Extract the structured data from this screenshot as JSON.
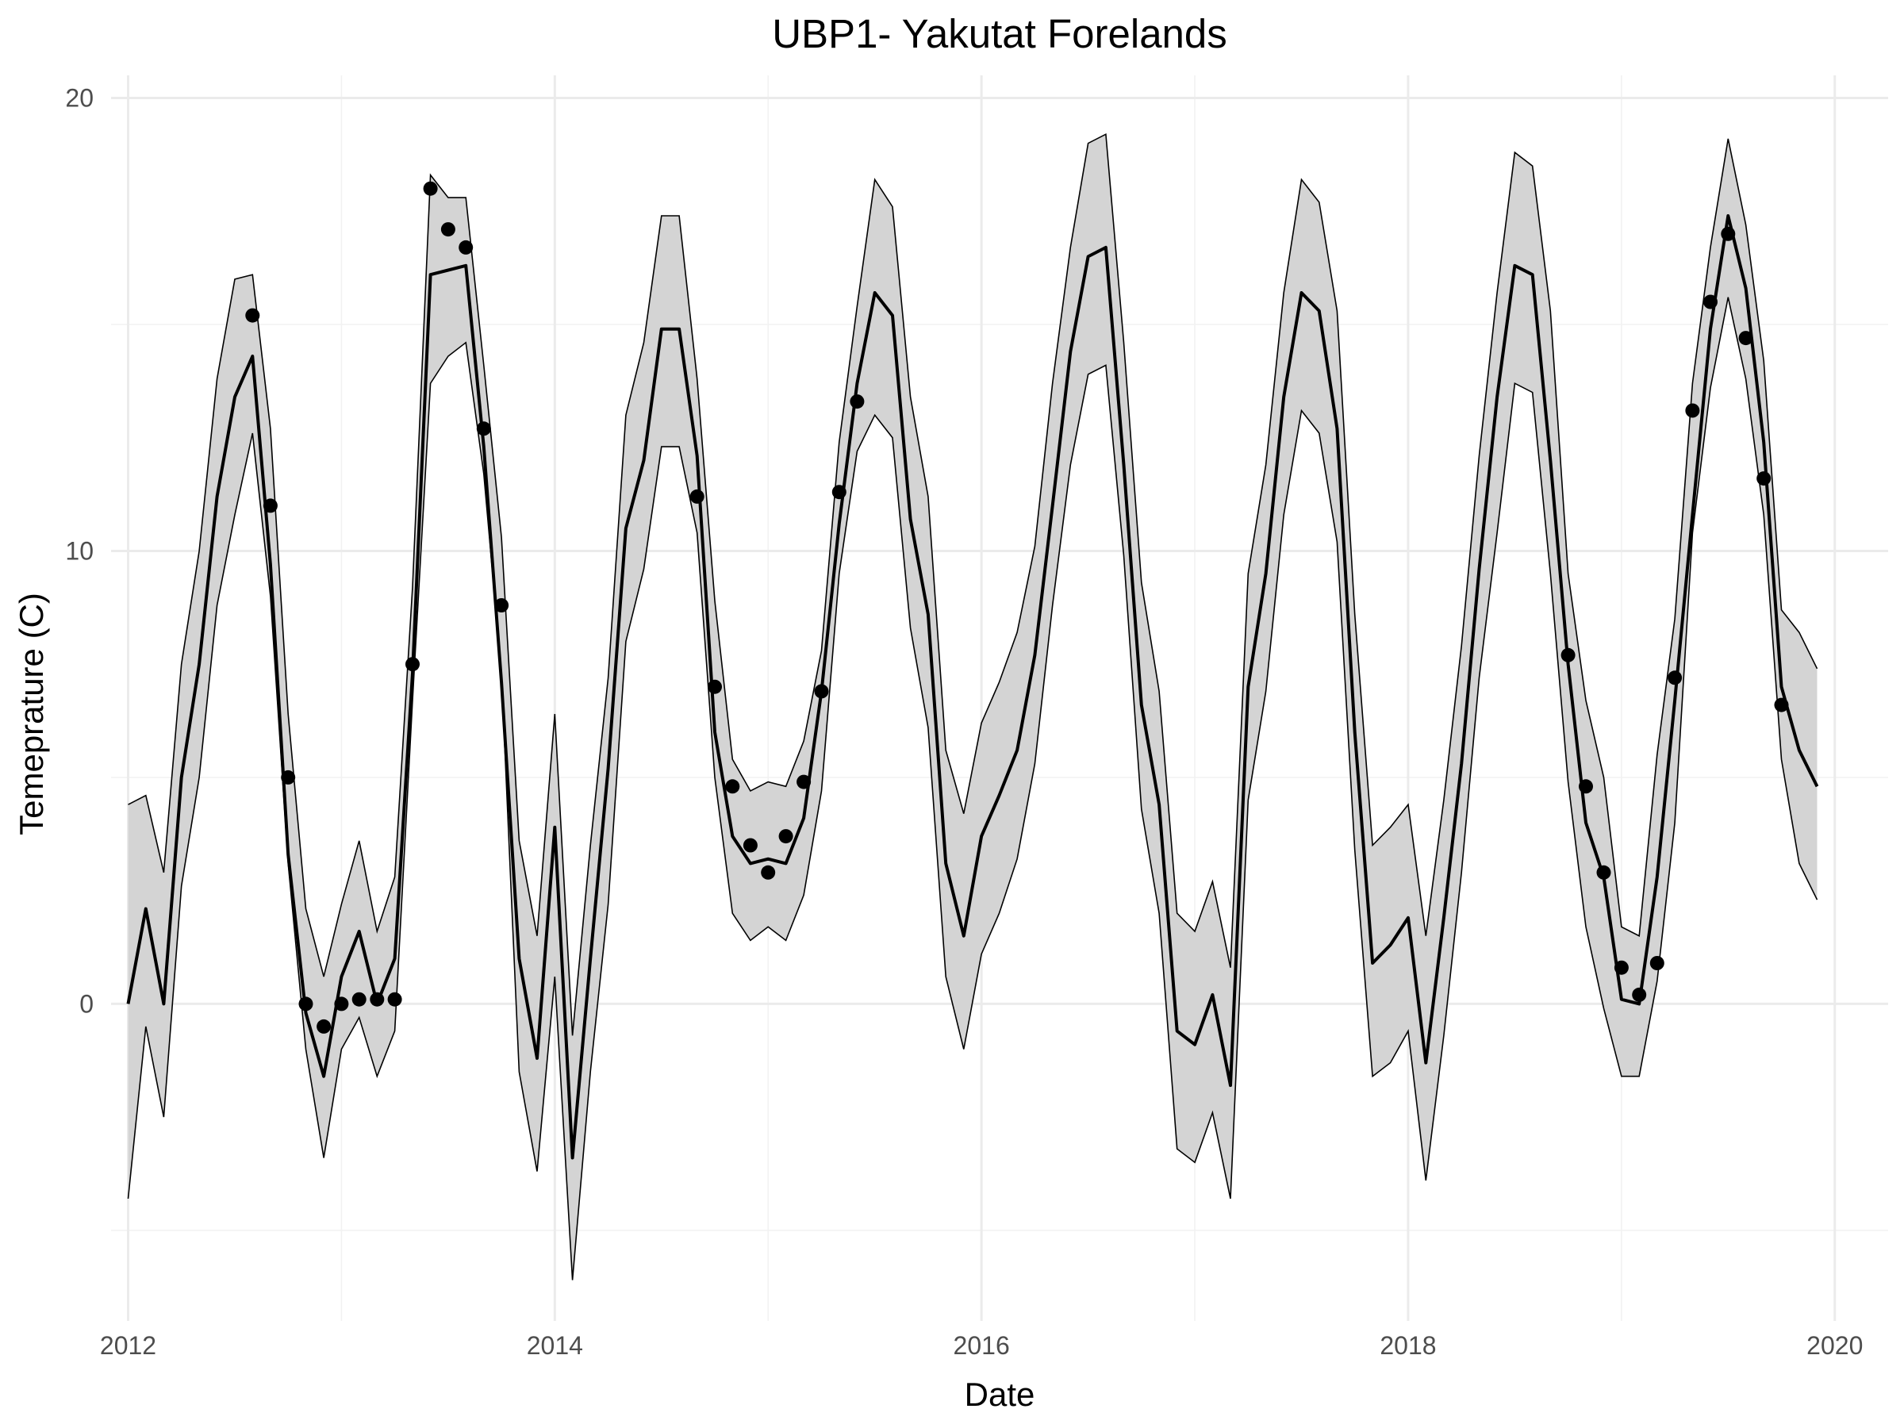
{
  "chart_data": {
    "type": "line",
    "title": "UBP1- Yakutat Forelands",
    "xlabel": "Date",
    "ylabel": "Temeprature (C)",
    "xlim": [
      2011.92,
      2020.25
    ],
    "ylim": [
      -7,
      20.5
    ],
    "x_ticks": [
      2012,
      2014,
      2016,
      2018,
      2020
    ],
    "x_tick_labels": [
      "2012",
      "2014",
      "2016",
      "2018",
      "2020"
    ],
    "y_ticks": [
      0,
      10,
      20
    ],
    "y_tick_labels": [
      "0",
      "10",
      "20"
    ],
    "grid": true,
    "legend": "none",
    "series": [
      {
        "role": "fitted",
        "x": [
          2012.0,
          2012.083,
          2012.167,
          2012.25,
          2012.333,
          2012.417,
          2012.5,
          2012.583,
          2012.667,
          2012.75,
          2012.833,
          2012.917,
          2013.0,
          2013.083,
          2013.167,
          2013.25,
          2013.333,
          2013.417,
          2013.5,
          2013.583,
          2013.667,
          2013.75,
          2013.833,
          2013.917,
          2014.0,
          2014.083,
          2014.167,
          2014.25,
          2014.333,
          2014.417,
          2014.5,
          2014.583,
          2014.667,
          2014.75,
          2014.833,
          2014.917,
          2015.0,
          2015.083,
          2015.167,
          2015.25,
          2015.333,
          2015.417,
          2015.5,
          2015.583,
          2015.667,
          2015.75,
          2015.833,
          2015.917,
          2016.0,
          2016.083,
          2016.167,
          2016.25,
          2016.333,
          2016.417,
          2016.5,
          2016.583,
          2016.667,
          2016.75,
          2016.833,
          2016.917,
          2017.0,
          2017.083,
          2017.167,
          2017.25,
          2017.333,
          2017.417,
          2017.5,
          2017.583,
          2017.667,
          2017.75,
          2017.833,
          2017.917,
          2018.0,
          2018.083,
          2018.167,
          2018.25,
          2018.333,
          2018.417,
          2018.5,
          2018.583,
          2018.667,
          2018.75,
          2018.833,
          2018.917,
          2019.0,
          2019.083,
          2019.167,
          2019.25,
          2019.333,
          2019.417,
          2019.5,
          2019.583,
          2019.667,
          2019.75,
          2019.833,
          2019.917
        ],
        "y": [
          0.0,
          2.1,
          0.0,
          5.0,
          7.5,
          11.2,
          13.4,
          14.3,
          9.7,
          3.3,
          -0.2,
          -1.6,
          0.6,
          1.6,
          0.0,
          1.0,
          7.3,
          16.1,
          16.2,
          16.3,
          12.3,
          7.1,
          1.0,
          -1.2,
          3.9,
          -3.4,
          1.0,
          5.2,
          10.5,
          12.0,
          14.9,
          14.9,
          12.1,
          6.0,
          3.7,
          3.1,
          3.2,
          3.1,
          4.1,
          6.9,
          10.6,
          13.7,
          15.7,
          15.2,
          10.7,
          8.6,
          3.1,
          1.5,
          3.7,
          4.6,
          5.6,
          7.7,
          11.0,
          14.4,
          16.5,
          16.7,
          11.9,
          6.6,
          4.4,
          -0.6,
          -0.9,
          0.2,
          -1.8,
          7.0,
          9.5,
          13.4,
          15.7,
          15.3,
          12.7,
          6.0,
          0.9,
          1.3,
          1.9,
          -1.3,
          1.9,
          5.3,
          9.6,
          13.4,
          16.3,
          16.1,
          12.0,
          7.5,
          4.0,
          2.8,
          0.1,
          0.0,
          2.8,
          6.7,
          10.8,
          14.9,
          17.4,
          15.8,
          12.4,
          7.0,
          5.6,
          4.8
        ]
      },
      {
        "role": "upper_bound",
        "x": [
          2012.0,
          2012.083,
          2012.167,
          2012.25,
          2012.333,
          2012.417,
          2012.5,
          2012.583,
          2012.667,
          2012.75,
          2012.833,
          2012.917,
          2013.0,
          2013.083,
          2013.167,
          2013.25,
          2013.333,
          2013.417,
          2013.5,
          2013.583,
          2013.667,
          2013.75,
          2013.833,
          2013.917,
          2014.0,
          2014.083,
          2014.167,
          2014.25,
          2014.333,
          2014.417,
          2014.5,
          2014.583,
          2014.667,
          2014.75,
          2014.833,
          2014.917,
          2015.0,
          2015.083,
          2015.167,
          2015.25,
          2015.333,
          2015.417,
          2015.5,
          2015.583,
          2015.667,
          2015.75,
          2015.833,
          2015.917,
          2016.0,
          2016.083,
          2016.167,
          2016.25,
          2016.333,
          2016.417,
          2016.5,
          2016.583,
          2016.667,
          2016.75,
          2016.833,
          2016.917,
          2017.0,
          2017.083,
          2017.167,
          2017.25,
          2017.333,
          2017.417,
          2017.5,
          2017.583,
          2017.667,
          2017.75,
          2017.833,
          2017.917,
          2018.0,
          2018.083,
          2018.167,
          2018.25,
          2018.333,
          2018.417,
          2018.5,
          2018.583,
          2018.667,
          2018.75,
          2018.833,
          2018.917,
          2019.0,
          2019.083,
          2019.167,
          2019.25,
          2019.333,
          2019.417,
          2019.5,
          2019.583,
          2019.667,
          2019.75,
          2019.833,
          2019.917
        ],
        "y": [
          4.4,
          4.6,
          2.9,
          7.5,
          10.0,
          13.8,
          16.0,
          16.1,
          12.7,
          6.4,
          2.1,
          0.6,
          2.2,
          3.6,
          1.6,
          2.8,
          9.2,
          18.3,
          17.8,
          17.8,
          14.1,
          10.3,
          3.6,
          1.5,
          6.4,
          -0.7,
          3.5,
          7.2,
          13.0,
          14.6,
          17.4,
          17.4,
          13.8,
          8.9,
          5.4,
          4.7,
          4.9,
          4.8,
          5.8,
          7.8,
          12.4,
          15.4,
          18.2,
          17.6,
          13.4,
          11.2,
          5.6,
          4.2,
          6.2,
          7.1,
          8.2,
          10.1,
          13.7,
          16.7,
          19.0,
          19.2,
          14.6,
          9.3,
          6.9,
          2.0,
          1.6,
          2.7,
          0.8,
          9.5,
          11.9,
          15.7,
          18.2,
          17.7,
          15.3,
          8.6,
          3.5,
          3.9,
          4.4,
          1.5,
          4.5,
          7.9,
          12.1,
          15.7,
          18.8,
          18.5,
          15.3,
          9.5,
          6.7,
          5.0,
          1.7,
          1.5,
          5.5,
          8.5,
          13.7,
          16.7,
          19.1,
          17.2,
          14.2,
          8.7,
          8.2,
          7.4
        ]
      },
      {
        "role": "lower_bound",
        "x": [
          2012.0,
          2012.083,
          2012.167,
          2012.25,
          2012.333,
          2012.417,
          2012.5,
          2012.583,
          2012.667,
          2012.75,
          2012.833,
          2012.917,
          2013.0,
          2013.083,
          2013.167,
          2013.25,
          2013.333,
          2013.417,
          2013.5,
          2013.583,
          2013.667,
          2013.75,
          2013.833,
          2013.917,
          2014.0,
          2014.083,
          2014.167,
          2014.25,
          2014.333,
          2014.417,
          2014.5,
          2014.583,
          2014.667,
          2014.75,
          2014.833,
          2014.917,
          2015.0,
          2015.083,
          2015.167,
          2015.25,
          2015.333,
          2015.417,
          2015.5,
          2015.583,
          2015.667,
          2015.75,
          2015.833,
          2015.917,
          2016.0,
          2016.083,
          2016.167,
          2016.25,
          2016.333,
          2016.417,
          2016.5,
          2016.583,
          2016.667,
          2016.75,
          2016.833,
          2016.917,
          2017.0,
          2017.083,
          2017.167,
          2017.25,
          2017.333,
          2017.417,
          2017.5,
          2017.583,
          2017.667,
          2017.75,
          2017.833,
          2017.917,
          2018.0,
          2018.083,
          2018.167,
          2018.25,
          2018.333,
          2018.417,
          2018.5,
          2018.583,
          2018.667,
          2018.75,
          2018.833,
          2018.917,
          2019.0,
          2019.083,
          2019.167,
          2019.25,
          2019.333,
          2019.417,
          2019.5,
          2019.583,
          2019.667,
          2019.75,
          2019.833,
          2019.917
        ],
        "y": [
          -4.3,
          -0.5,
          -2.5,
          2.6,
          5.0,
          8.8,
          10.8,
          12.6,
          9.0,
          3.1,
          -1.0,
          -3.4,
          -1.0,
          -0.3,
          -1.6,
          -0.6,
          6.7,
          13.7,
          14.3,
          14.6,
          11.7,
          7.3,
          -1.5,
          -3.7,
          0.6,
          -6.1,
          -1.5,
          2.2,
          8.0,
          9.6,
          12.3,
          12.3,
          10.4,
          5.0,
          2.0,
          1.4,
          1.7,
          1.4,
          2.4,
          4.7,
          9.5,
          12.2,
          13.0,
          12.5,
          8.3,
          6.1,
          0.6,
          -1.0,
          1.1,
          2.0,
          3.2,
          5.3,
          8.8,
          11.9,
          13.9,
          14.1,
          9.9,
          4.3,
          2.0,
          -3.2,
          -3.5,
          -2.4,
          -4.3,
          4.5,
          6.9,
          10.8,
          13.1,
          12.6,
          10.2,
          3.4,
          -1.6,
          -1.3,
          -0.6,
          -3.9,
          -0.7,
          2.9,
          7.2,
          10.4,
          13.7,
          13.5,
          9.5,
          4.9,
          1.7,
          -0.1,
          -1.6,
          -1.6,
          0.5,
          4.0,
          10.4,
          13.6,
          15.6,
          13.8,
          10.8,
          5.4,
          3.1,
          2.3
        ]
      },
      {
        "role": "observed",
        "x": [
          2012.583,
          2012.667,
          2012.75,
          2012.833,
          2012.917,
          2013.0,
          2013.083,
          2013.167,
          2013.25,
          2013.333,
          2013.417,
          2013.5,
          2013.583,
          2013.667,
          2013.75,
          2014.667,
          2014.75,
          2014.833,
          2014.917,
          2015.0,
          2015.083,
          2015.167,
          2015.25,
          2015.333,
          2015.417,
          2018.75,
          2018.833,
          2018.917,
          2019.0,
          2019.083,
          2019.167,
          2019.25,
          2019.333,
          2019.417,
          2019.5,
          2019.583,
          2019.667,
          2019.75
        ],
        "y": [
          15.2,
          11.0,
          5.0,
          0.0,
          -0.5,
          0.0,
          0.1,
          0.1,
          0.1,
          7.5,
          18.0,
          17.1,
          16.7,
          12.7,
          8.8,
          11.2,
          7.0,
          4.8,
          3.5,
          2.9,
          3.7,
          4.9,
          6.9,
          11.3,
          13.3,
          7.7,
          4.8,
          2.9,
          0.8,
          0.2,
          0.9,
          7.2,
          13.1,
          15.5,
          17.0,
          14.7,
          11.6,
          6.6
        ]
      }
    ]
  }
}
